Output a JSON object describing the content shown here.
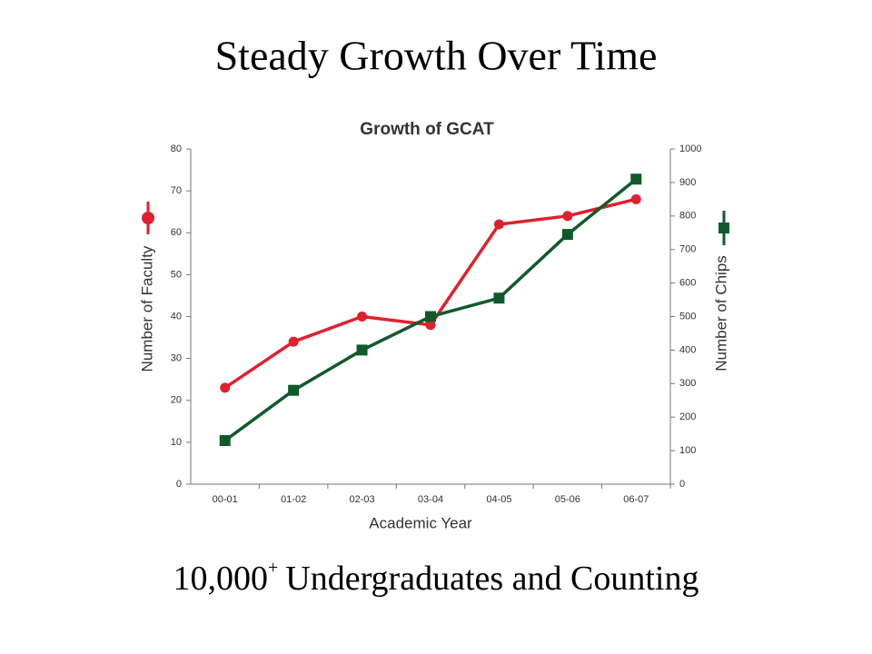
{
  "slide": {
    "title": "Steady Growth Over Time",
    "caption": {
      "number": "10,000",
      "superscript": "+",
      "text": "Undergraduates and Counting"
    }
  },
  "chart_data": {
    "type": "line",
    "title": "Growth of GCAT",
    "x_label": "Academic Year",
    "categories": [
      "00-01",
      "01-02",
      "02-03",
      "03-04",
      "04-05",
      "05-06",
      "06-07"
    ],
    "series": [
      {
        "name": "Number of Faculty",
        "color": "#e0202e",
        "marker": "circle",
        "values": [
          23,
          34,
          40,
          38,
          62,
          64,
          68
        ]
      },
      {
        "name": "Number of Chips",
        "color": "#0f5a2a",
        "marker": "square",
        "axis": "y2",
        "values": [
          130,
          280,
          400,
          500,
          555,
          745,
          910
        ]
      }
    ],
    "ylim": [
      0,
      80
    ],
    "yticks": [
      0,
      10,
      20,
      30,
      40,
      50,
      60,
      70,
      80
    ],
    "y2lim": [
      0,
      1000
    ],
    "y2ticks": [
      0,
      100,
      200,
      300,
      400,
      500,
      600,
      700,
      800,
      900,
      1000
    ],
    "grid": false
  }
}
